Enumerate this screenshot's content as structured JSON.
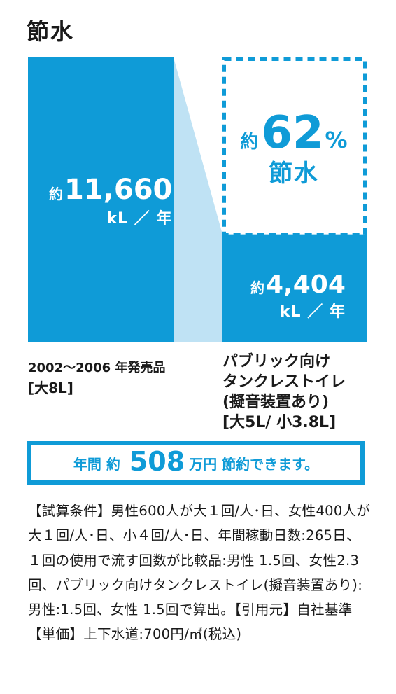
{
  "title": "節水",
  "chart_data": {
    "type": "bar",
    "categories": [
      "2002〜2006 年発売品 [大8L]",
      "パブリック向け タンクレストイレ (擬音装置あり) [大5L/ 小3.8L]"
    ],
    "values": [
      11660,
      4404
    ],
    "unit": "kL ／ 年",
    "savings_percent": 62
  },
  "bars": [
    {
      "approx": "約",
      "value": "11,660",
      "unit": "kL ／ 年"
    },
    {
      "approx": "約",
      "value": "4,404",
      "unit": "kL ／ 年"
    }
  ],
  "savings": {
    "approx": "約",
    "number": "62",
    "percent": "%",
    "label": "節水"
  },
  "labels": {
    "left_line1": "2002〜2006 年発売品",
    "left_line2": "[大8L]",
    "right_line1": "パブリック向け",
    "right_line2": "タンクレストイレ",
    "right_line3": "(擬音装置あり)",
    "right_line4": "[大5L/ 小3.8L]"
  },
  "banner": {
    "prefix": "年間 約 ",
    "amount": "508",
    "suffix": "万円 節約できます。"
  },
  "note": "【試算条件】男性600人が大１回/人･日、女性400人が大１回/人･日、小４回/人･日、年間稼動日数:265日、１回の使用で流す回数が比較品:男性 1.5回、女性2.3回、パブリック向けタンクレストイレ(擬音装置あり):男性:1.5回、女性 1.5回で算出。【引用元】自社基準【単価】上下水道:700円/㎥(税込)",
  "colors": {
    "primary": "#0f9bd7",
    "light": "#bfe2f4",
    "text": "#1a1a1a"
  }
}
